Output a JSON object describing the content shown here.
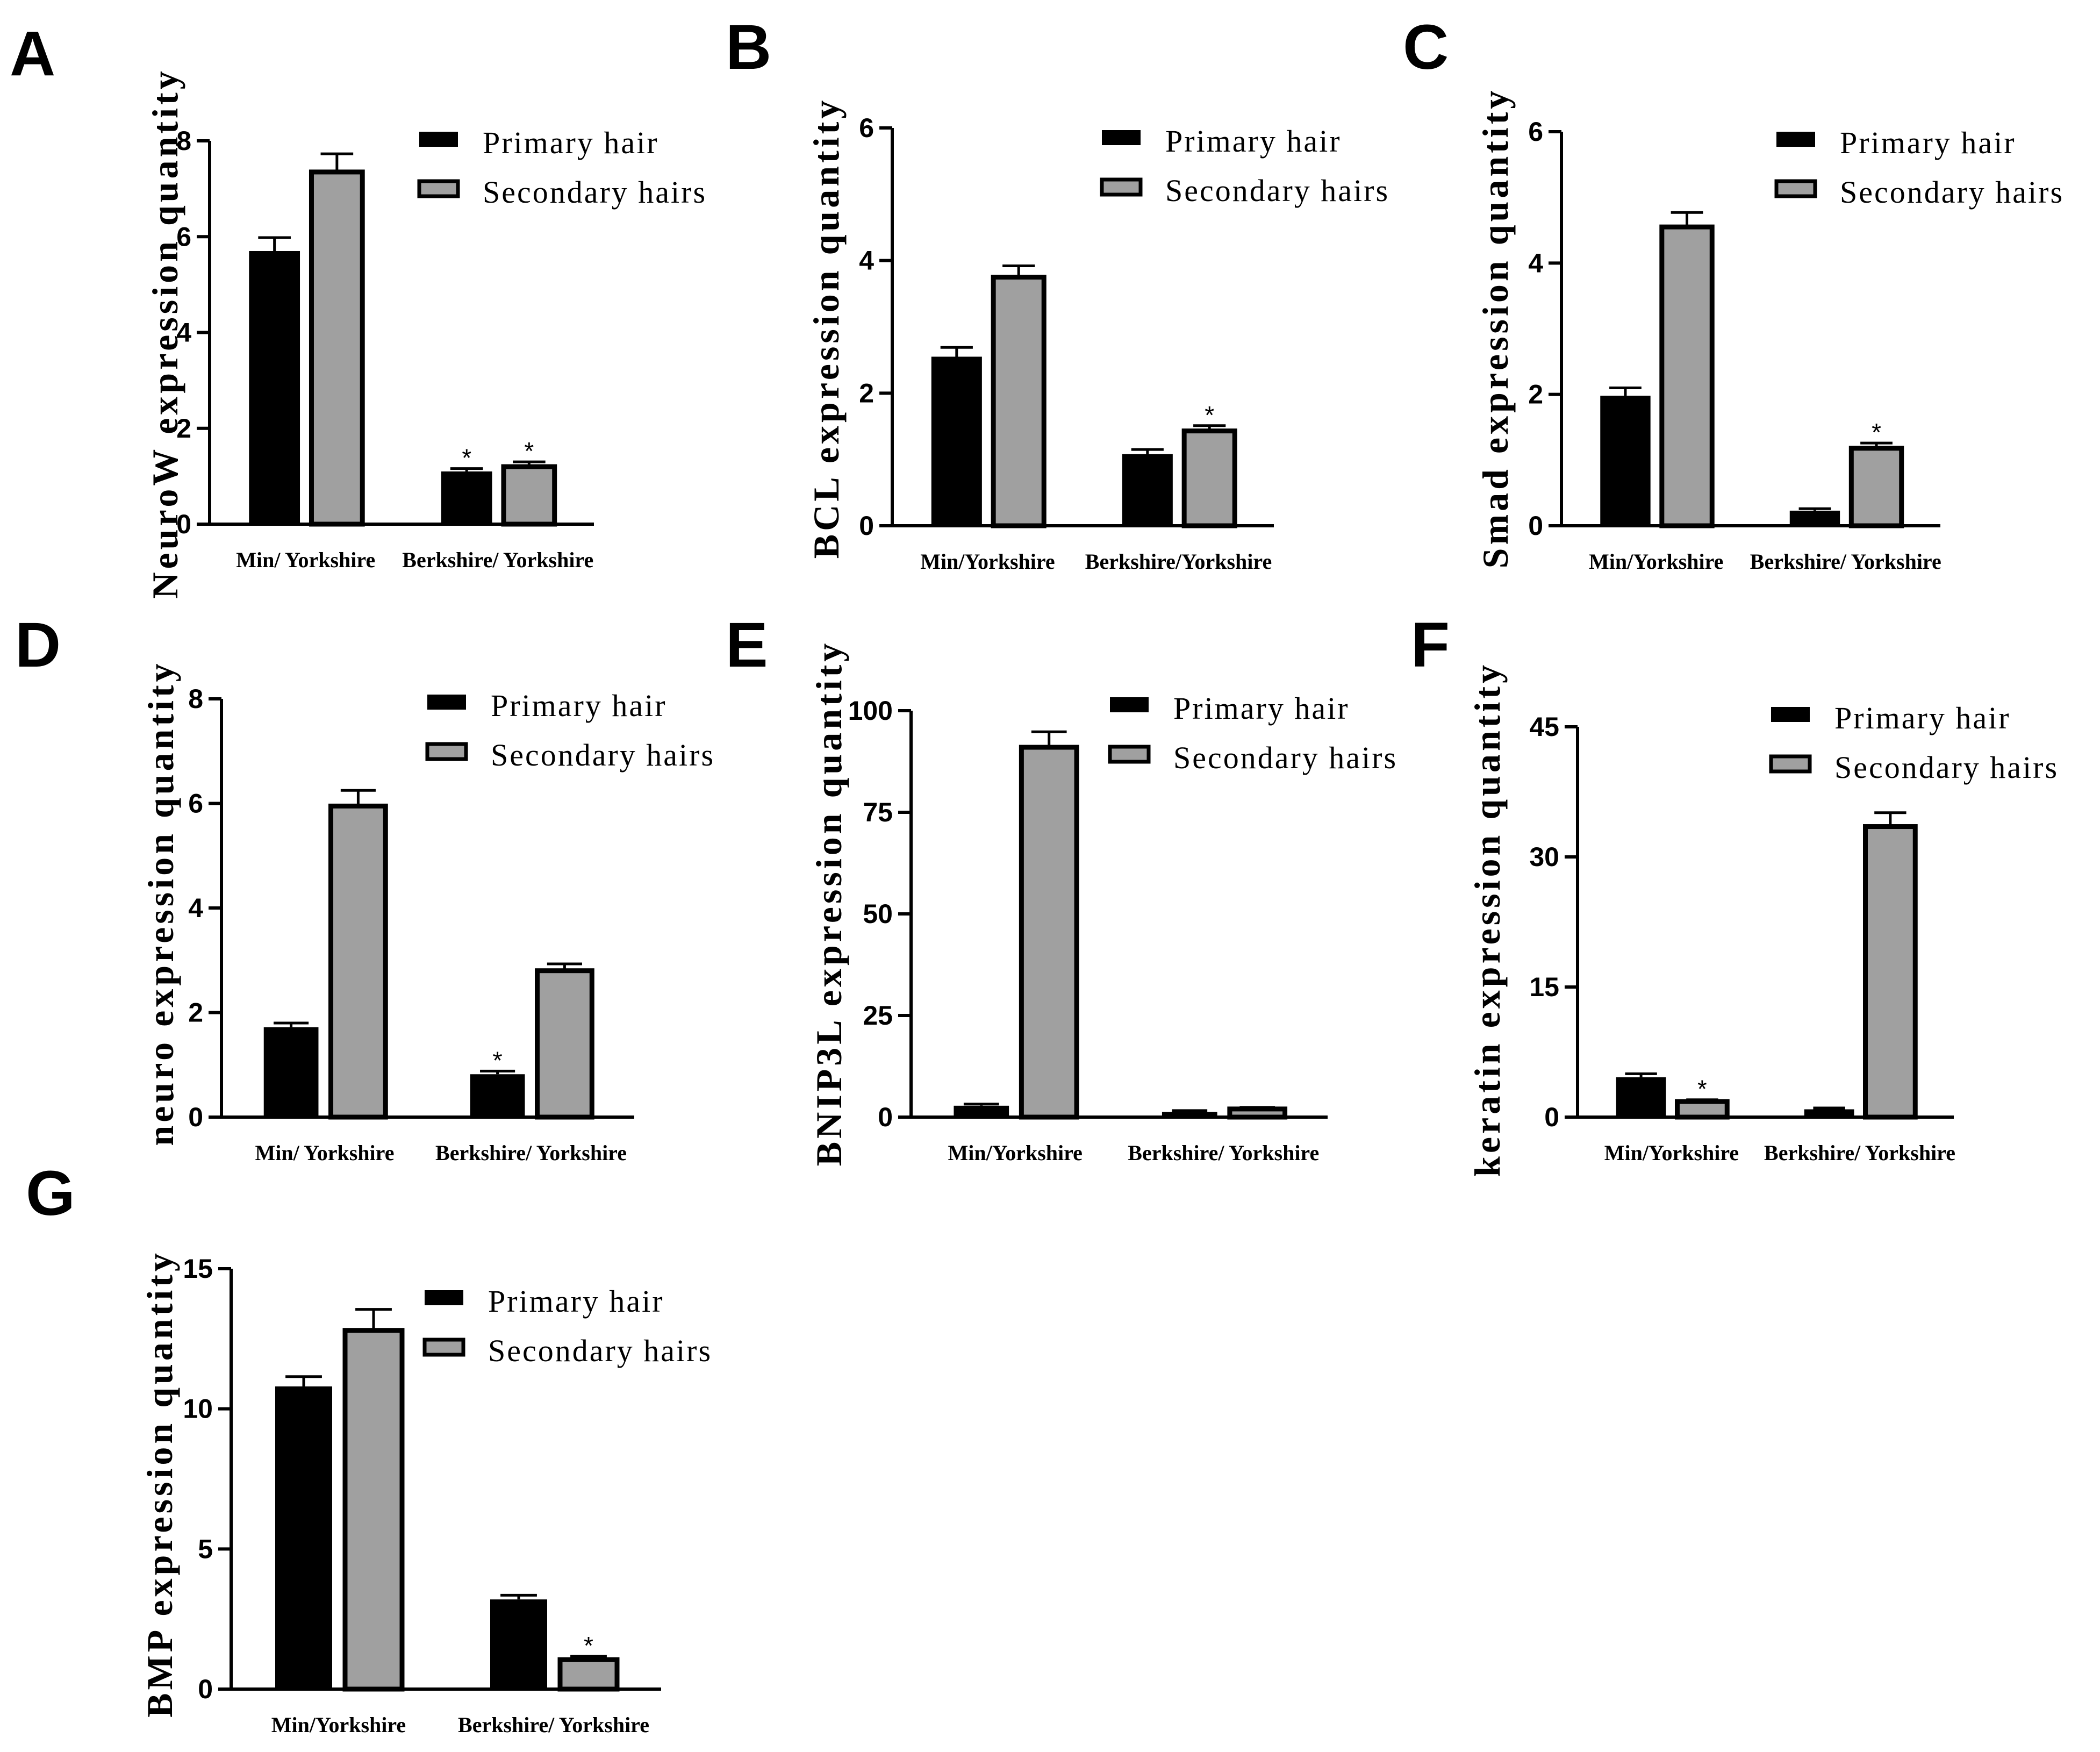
{
  "chart_data": [
    {
      "type": "bar",
      "panel": "A",
      "ylabel": "NeuroW expression quantity",
      "categories": [
        "Min/ Yorkshire",
        "Berkshire/ Yorkshire"
      ],
      "yticks": [
        "0",
        "2",
        "4",
        "6",
        "8"
      ],
      "ylim": [
        0,
        8
      ],
      "series": [
        {
          "name": "Primary hair",
          "values": [
            5.7,
            1.1
          ],
          "errors": [
            0.28,
            0.06
          ],
          "sig": [
            "",
            "*"
          ]
        },
        {
          "name": "Secondary hairs",
          "values": [
            7.35,
            1.2
          ],
          "errors": [
            0.38,
            0.1
          ],
          "sig": [
            "",
            "*"
          ]
        }
      ]
    },
    {
      "type": "bar",
      "panel": "B",
      "ylabel": "BCL expression quantity",
      "categories": [
        "Min/Yorkshire",
        "Berkshire/Yorkshire"
      ],
      "yticks": [
        "0",
        "2",
        "4",
        "6"
      ],
      "ylim": [
        0,
        6
      ],
      "series": [
        {
          "name": "Primary hair",
          "values": [
            2.55,
            1.08
          ],
          "errors": [
            0.14,
            0.07
          ],
          "sig": [
            "",
            ""
          ]
        },
        {
          "name": "Secondary hairs",
          "values": [
            3.75,
            1.43
          ],
          "errors": [
            0.17,
            0.08
          ],
          "sig": [
            "",
            "*"
          ]
        }
      ]
    },
    {
      "type": "bar",
      "panel": "C",
      "ylabel": "Smad expression quantity",
      "categories": [
        "Min/Yorkshire",
        "Berkshire/ Yorkshire"
      ],
      "yticks": [
        "0",
        "2",
        "4",
        "6"
      ],
      "ylim": [
        0,
        6
      ],
      "series": [
        {
          "name": "Primary hair",
          "values": [
            1.98,
            0.23
          ],
          "errors": [
            0.12,
            0.03
          ],
          "sig": [
            "",
            ""
          ]
        },
        {
          "name": "Secondary hairs",
          "values": [
            4.55,
            1.18
          ],
          "errors": [
            0.22,
            0.08
          ],
          "sig": [
            "",
            "*"
          ]
        }
      ]
    },
    {
      "type": "bar",
      "panel": "D",
      "ylabel": "neuro expression quantity",
      "categories": [
        "Min/  Yorkshire",
        "Berkshire/ Yorkshire"
      ],
      "yticks": [
        "0",
        "2",
        "4",
        "6",
        "8"
      ],
      "ylim": [
        0,
        8
      ],
      "series": [
        {
          "name": "Primary hair",
          "values": [
            1.72,
            0.82
          ],
          "errors": [
            0.08,
            0.06
          ],
          "sig": [
            "",
            "*"
          ]
        },
        {
          "name": "Secondary hairs",
          "values": [
            5.95,
            2.8
          ],
          "errors": [
            0.3,
            0.13
          ],
          "sig": [
            "",
            ""
          ]
        }
      ]
    },
    {
      "type": "bar",
      "panel": "E",
      "ylabel": "BNIP3L expression quantity",
      "categories": [
        "Min/Yorkshire",
        "Berkshire/ Yorkshire"
      ],
      "yticks": [
        "0",
        "25",
        "50",
        "75",
        "100"
      ],
      "ylim": [
        0,
        100
      ],
      "series": [
        {
          "name": "Primary hair",
          "values": [
            2.8,
            1.3
          ],
          "errors": [
            0.4,
            0.3
          ],
          "sig": [
            "",
            ""
          ]
        },
        {
          "name": "Secondary hairs",
          "values": [
            91,
            2.0
          ],
          "errors": [
            3.8,
            0.4
          ],
          "sig": [
            "",
            ""
          ]
        }
      ]
    },
    {
      "type": "bar",
      "panel": "F",
      "ylabel": "keratin expression quantity",
      "categories": [
        "Min/Yorkshire",
        "Berkshire/ Yorkshire"
      ],
      "yticks": [
        "0",
        "15",
        "30",
        "45"
      ],
      "ylim": [
        0,
        45
      ],
      "series": [
        {
          "name": "Primary hair",
          "values": [
            4.6,
            0.9
          ],
          "errors": [
            0.4,
            0.15
          ],
          "sig": [
            "",
            ""
          ]
        },
        {
          "name": "Secondary hairs",
          "values": [
            1.8,
            33.5
          ],
          "errors": [
            0.2,
            1.6
          ],
          "sig": [
            "*",
            ""
          ]
        }
      ]
    },
    {
      "type": "bar",
      "panel": "G",
      "ylabel": "BMP expression quantity",
      "categories": [
        "Min/Yorkshire",
        "Berkshire/ Yorkshire"
      ],
      "yticks": [
        "0",
        "5",
        "10",
        "15"
      ],
      "ylim": [
        0,
        15
      ],
      "series": [
        {
          "name": "Primary hair",
          "values": [
            10.8,
            3.2
          ],
          "errors": [
            0.35,
            0.15
          ],
          "sig": [
            "",
            ""
          ]
        },
        {
          "name": "Secondary hairs",
          "values": [
            12.8,
            1.05
          ],
          "errors": [
            0.75,
            0.12
          ],
          "sig": [
            "",
            "*"
          ]
        }
      ]
    }
  ],
  "colors": {
    "primary": "#000000",
    "secondary": "#a0a0a0",
    "axis": "#000000"
  }
}
